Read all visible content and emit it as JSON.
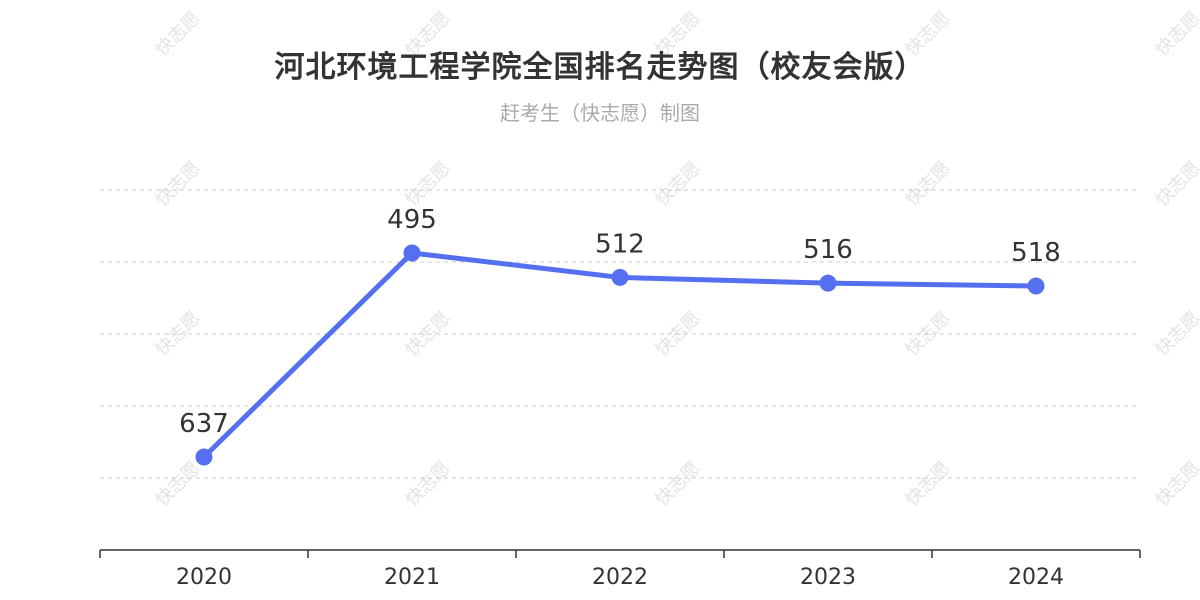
{
  "chart_data": {
    "type": "line",
    "title": "河北环境工程学院全国排名走势图（校友会版）",
    "subtitle": "赶考生（快志愿）制图",
    "categories": [
      "2020",
      "2021",
      "2022",
      "2023",
      "2024"
    ],
    "series": [
      {
        "values": [
          637,
          495,
          512,
          516,
          518
        ]
      }
    ],
    "y_axis": {
      "inverted": true,
      "tick_labels_shown": false
    },
    "grid": true,
    "legend": false,
    "colors": {
      "line": "#5470f0",
      "grid": "#cccccc",
      "axis": "#333333",
      "label": "#333333"
    }
  },
  "watermark_text": "快志愿"
}
